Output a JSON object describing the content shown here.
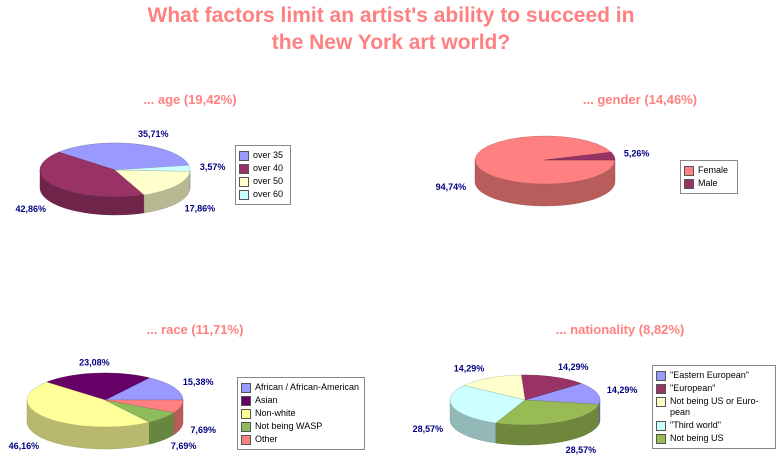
{
  "title": "What factors limit an artist's ability to succeed in the New York art world?",
  "chart_data": [
    {
      "type": "pie",
      "title": "... age  (19,42%)",
      "categories": [
        "over 35",
        "over 40",
        "over 50",
        "over 60"
      ],
      "values": [
        35.71,
        42.86,
        17.86,
        3.57
      ],
      "value_labels": [
        "35,71%",
        "42,86%",
        "17,86%",
        "3,57%"
      ],
      "colors": [
        "#9999ff",
        "#993366",
        "#ffffcc",
        "#ccffff"
      ]
    },
    {
      "type": "pie",
      "title": "... gender  (14,46%)",
      "categories": [
        "Female",
        "Male"
      ],
      "values": [
        94.74,
        5.26
      ],
      "value_labels": [
        "94,74%",
        "5,26%"
      ],
      "colors": [
        "#ff8080",
        "#993366"
      ]
    },
    {
      "type": "pie",
      "title": "... race (11,71%)",
      "categories": [
        "African / African-American",
        "Asian",
        "Non-white",
        "Not being WASP",
        "Other"
      ],
      "values": [
        15.38,
        23.08,
        46.16,
        7.69,
        7.69
      ],
      "value_labels": [
        "15,38%",
        "23,08%",
        "46,16%",
        "7,69%",
        "7,69%"
      ],
      "colors": [
        "#9999ff",
        "#660066",
        "#ffff99",
        "#8fbc5a",
        "#ff8080"
      ]
    },
    {
      "type": "pie",
      "title": "... nationality (8,82%)",
      "categories": [
        "\"Eastern European\"",
        "\"European\"",
        "Not being US or Euro-pean",
        "\"Third world\"",
        "Not being US"
      ],
      "values": [
        14.29,
        14.29,
        14.29,
        28.57,
        28.57
      ],
      "value_labels": [
        "14,29%",
        "14,29%",
        "14,29%",
        "28,57%",
        "28,57%"
      ],
      "colors": [
        "#9999ff",
        "#993366",
        "#ffffcc",
        "#ccffff",
        "#99bb55"
      ]
    }
  ]
}
